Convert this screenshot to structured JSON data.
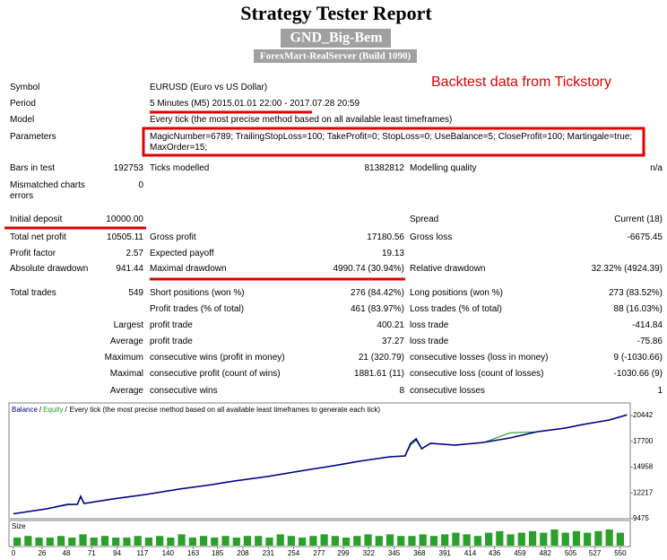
{
  "header": {
    "title": "Strategy Tester Report",
    "expert": "GND_Big-Bem",
    "server": "ForexMart-RealServer (Build 1090)",
    "annotation": "Backtest data from Tickstory"
  },
  "table": {
    "rows": [
      [
        "Symbol",
        null,
        "EURUSD (Euro vs US Dollar)",
        null,
        null,
        null
      ],
      [
        "Period",
        null,
        "5 Minutes (M5) 2015.01.01 22:00 - 2017.07.28 20:59",
        null,
        null,
        null
      ],
      [
        "Model",
        null,
        "Every tick (the most precise method based on all available least timeframes)",
        null,
        null,
        null
      ],
      [
        "Parameters",
        null,
        "MagicNumber=6789; TrailingStopLoss=100; TakeProfit=0; StopLoss=0; UseBalance=5; CloseProfit=100; Martingale=true; MaxOrder=15;",
        null,
        null,
        null
      ],
      [
        "Bars in test",
        "192753",
        "Ticks modelled",
        "81382812",
        "Modelling quality",
        "n/a"
      ],
      [
        "Mismatched charts errors",
        "0",
        null,
        null,
        null,
        null
      ],
      [
        "Initial deposit",
        "10000.00",
        null,
        null,
        "Spread",
        "Current (18)"
      ],
      [
        "Total net profit",
        "10505.11",
        "Gross profit",
        "17180.56",
        "Gross loss",
        "-6675.45"
      ],
      [
        "Profit factor",
        "2.57",
        "Expected payoff",
        "19.13",
        null,
        null
      ],
      [
        "Absolute drawdown",
        "941.44",
        "Maximal drawdown",
        "4990.74 (30.94%)",
        "Relative drawdown",
        "32.32% (4924.39)"
      ],
      [
        "Total trades",
        "549",
        "Short positions (won %)",
        "276 (84.42%)",
        "Long positions (won %)",
        "273 (83.52%)"
      ],
      [
        null,
        null,
        "Profit trades (% of total)",
        "461 (83.97%)",
        "Loss trades (% of total)",
        "88 (16.03%)"
      ],
      [
        null,
        "Largest",
        "profit trade",
        "400.21",
        "loss trade",
        "-414.84"
      ],
      [
        null,
        "Average",
        "profit trade",
        "37.27",
        "loss trade",
        "-75.86"
      ],
      [
        null,
        "Maximum",
        "consecutive wins (profit in money)",
        "21 (320.79)",
        "consecutive losses (loss in money)",
        "9 (-1030.66)"
      ],
      [
        null,
        "Maximal",
        "consecutive profit (count of wins)",
        "1881.61 (11)",
        "consecutive loss (count of losses)",
        "-1030.66 (9)"
      ],
      [
        null,
        "Average",
        "consecutive wins",
        "8",
        "consecutive losses",
        "1"
      ]
    ]
  },
  "chart_data": {
    "type": "line",
    "title": "Every tick (the most precise method based on all available least timeframes to generate each tick)",
    "separator": "/",
    "x": [
      0,
      30,
      49,
      58,
      61,
      64,
      90,
      120,
      150,
      180,
      200,
      230,
      264,
      290,
      313,
      341,
      355,
      360,
      365,
      370,
      378,
      400,
      426,
      450,
      475,
      500,
      516,
      540,
      556
    ],
    "series": [
      {
        "name": "Balance",
        "color": "#00008b",
        "values": [
          10000,
          10524,
          11000,
          11000,
          11858,
          11096,
          11572,
          12049,
          12621,
          13098,
          13479,
          13955,
          14623,
          15099,
          15576,
          16053,
          16148,
          17483,
          17960,
          16910,
          17483,
          17292,
          17578,
          18055,
          18722,
          19104,
          19485,
          19961,
          20505
        ]
      },
      {
        "name": "Equity",
        "color": "#22a022",
        "values": [
          10000,
          10500,
          10950,
          10990,
          11800,
          11090,
          11560,
          12040,
          12600,
          13090,
          13470,
          13940,
          14600,
          15080,
          15560,
          16040,
          16140,
          17300,
          17800,
          16900,
          17480,
          17290,
          17560,
          18600,
          18700,
          19090,
          19470,
          19950,
          20500
        ]
      }
    ],
    "xlim": [
      -4,
      559
    ],
    "xticks": [
      0,
      26,
      48,
      71,
      94,
      117,
      140,
      163,
      185,
      208,
      231,
      254,
      277,
      299,
      322,
      345,
      368,
      391,
      414,
      436,
      459,
      482,
      505,
      527,
      550
    ],
    "ylim": [
      9475,
      21770
    ],
    "yticks": [
      9475,
      12217,
      14958,
      17700,
      20442
    ],
    "size": {
      "name": "Size",
      "color": "#2ca02c",
      "values": [
        5,
        6,
        5,
        5,
        6,
        5,
        7,
        5,
        6,
        5,
        5,
        6,
        5,
        6,
        5,
        7,
        5,
        6,
        5,
        6,
        5,
        6,
        6,
        5,
        7,
        6,
        5,
        6,
        7,
        6,
        5,
        6,
        7,
        6,
        7,
        6,
        6,
        7,
        6,
        7,
        8,
        7,
        6,
        8,
        9,
        7,
        8,
        9,
        8,
        10,
        8,
        9,
        8,
        9,
        10,
        8
      ]
    }
  }
}
